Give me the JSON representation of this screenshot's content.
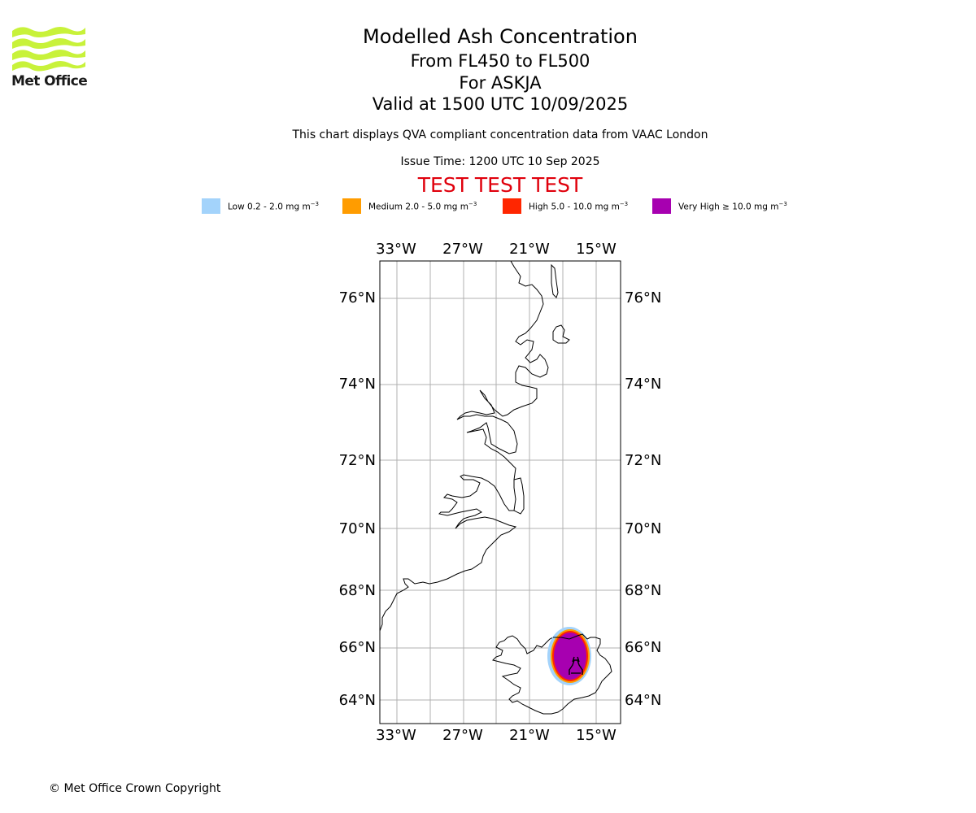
{
  "logo": {
    "text": "Met Office"
  },
  "header": {
    "title": "Modelled Ash Concentration",
    "flight_levels": "From FL450 to FL500",
    "volcano": "For ASKJA",
    "valid_time": "Valid at 1500 UTC 10/09/2025",
    "subtitle": "This chart displays QVA compliant concentration data from VAAC London",
    "issue_time": "Issue Time: 1200 UTC 10 Sep 2025",
    "test_banner": "TEST TEST TEST"
  },
  "legend": [
    {
      "label": "Low 0.2 - 2.0 mg m",
      "unit_exp": "−3",
      "color": "#a3d3fb"
    },
    {
      "label": "Medium 2.0 - 5.0 mg m",
      "unit_exp": "−3",
      "color": "#ff9c00"
    },
    {
      "label": "High 5.0 - 10.0 mg m",
      "unit_exp": "−3",
      "color": "#ff2600"
    },
    {
      "label": "Very High  ≥  10.0 mg m",
      "unit_exp": "−3",
      "color": "#a700b0"
    }
  ],
  "map": {
    "lon_ticks": [
      "33°W",
      "27°W",
      "21°W",
      "15°W"
    ],
    "lat_ticks": [
      "76°N",
      "74°N",
      "72°N",
      "70°N",
      "68°N",
      "66°N",
      "64°N"
    ],
    "lon_range": [
      -34.5,
      -13.5
    ],
    "lat_range": [
      63.4,
      77.0
    ],
    "volcano_symbol": "volcano-icon"
  },
  "footer": {
    "copyright": "© Met Office Crown Copyright"
  }
}
